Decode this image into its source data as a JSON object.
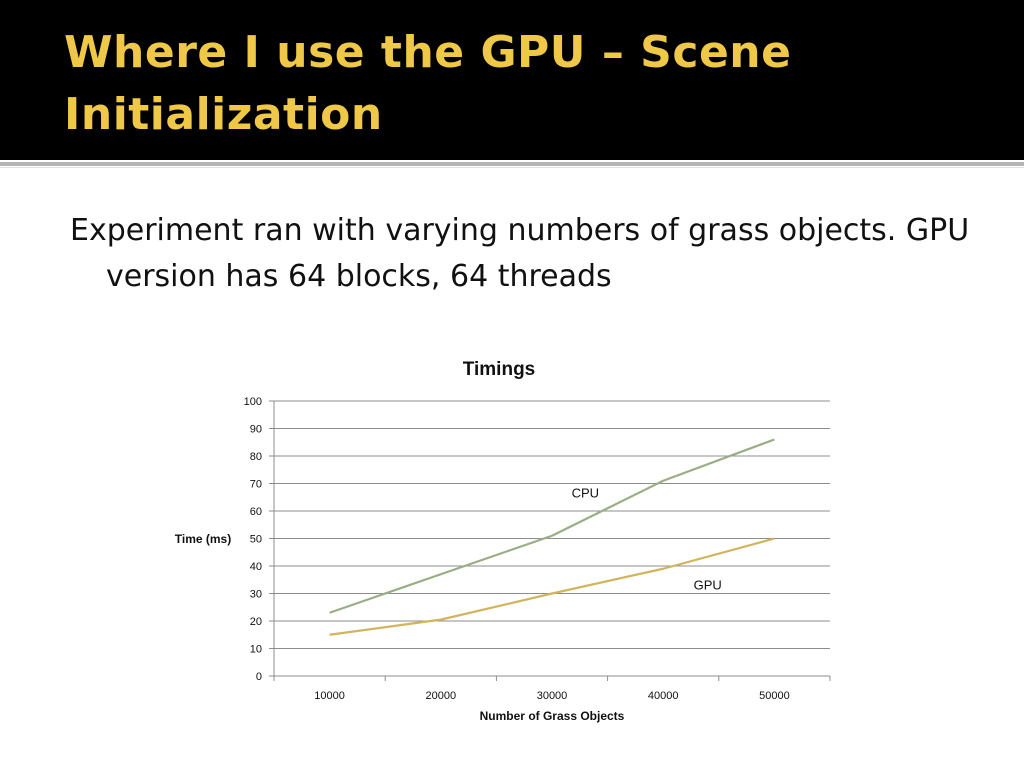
{
  "slide": {
    "title": "Where I use the GPU – Scene Initialization",
    "bullet": "Experiment ran with varying numbers of grass objects.  GPU version has 64 blocks, 64 threads"
  },
  "colors": {
    "title_band": "#000000",
    "title_text": "#f0c848",
    "cpu_line": "#9aad84",
    "gpu_line": "#d2b45c",
    "gridline": "#8c8c8c"
  },
  "chart_data": {
    "type": "line",
    "title": "Timings",
    "xlabel": "Number of Grass Objects",
    "ylabel": "Time (ms)",
    "categories": [
      "10000",
      "20000",
      "30000",
      "40000",
      "50000"
    ],
    "ylim": [
      0,
      100
    ],
    "yticks": [
      0,
      10,
      20,
      30,
      40,
      50,
      60,
      70,
      80,
      90,
      100
    ],
    "grid": true,
    "legend": "none",
    "series": [
      {
        "name": "CPU",
        "values": [
          23,
          37,
          51,
          71,
          86
        ]
      },
      {
        "name": "GPU",
        "values": [
          15,
          20.5,
          30,
          39,
          50
        ]
      }
    ]
  }
}
